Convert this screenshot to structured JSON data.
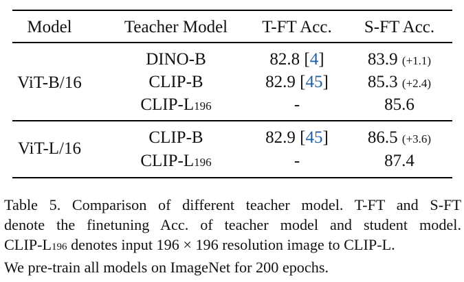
{
  "table": {
    "headers": [
      "Model",
      "Teacher Model",
      "T-FT Acc.",
      "S-FT Acc."
    ],
    "groups": [
      {
        "model": "ViT-B/16",
        "rows": [
          {
            "teacher": "DINO-B",
            "teacher_sub": "",
            "tft": "82.8 [",
            "tft_ref": "4",
            "tft_end": "]",
            "sft": "83.9",
            "sft_delta": "(+1.1)"
          },
          {
            "teacher": "CLIP-B",
            "teacher_sub": "",
            "tft": "82.9 [",
            "tft_ref": "45",
            "tft_end": "]",
            "sft": "85.3",
            "sft_delta": "(+2.4)"
          },
          {
            "teacher": "CLIP-L",
            "teacher_sub": "196",
            "tft": "-",
            "tft_ref": "",
            "tft_end": "",
            "sft": "85.6",
            "sft_delta": ""
          }
        ]
      },
      {
        "model": "ViT-L/16",
        "rows": [
          {
            "teacher": "CLIP-B",
            "teacher_sub": "",
            "tft": "82.9 [",
            "tft_ref": "45",
            "tft_end": "]",
            "sft": "86.5",
            "sft_delta": "(+3.6)"
          },
          {
            "teacher": "CLIP-L",
            "teacher_sub": "196",
            "tft": "-",
            "tft_ref": "",
            "tft_end": "",
            "sft": "87.4",
            "sft_delta": ""
          }
        ]
      }
    ]
  },
  "caption": {
    "line1": "Table 5. Comparison of different teacher model. T-FT and S-FT",
    "line2": "denote the finetuning Acc. of teacher model and student model.",
    "line3_a": "CLIP-L",
    "line3_sub": "196",
    "line3_b": " denotes input 196 × 196 resolution image to CLIP-L.",
    "line4": "We pre-train all models on ImageNet for 200 epochs."
  },
  "colors": {
    "reference_link": "#1f5fa8"
  }
}
